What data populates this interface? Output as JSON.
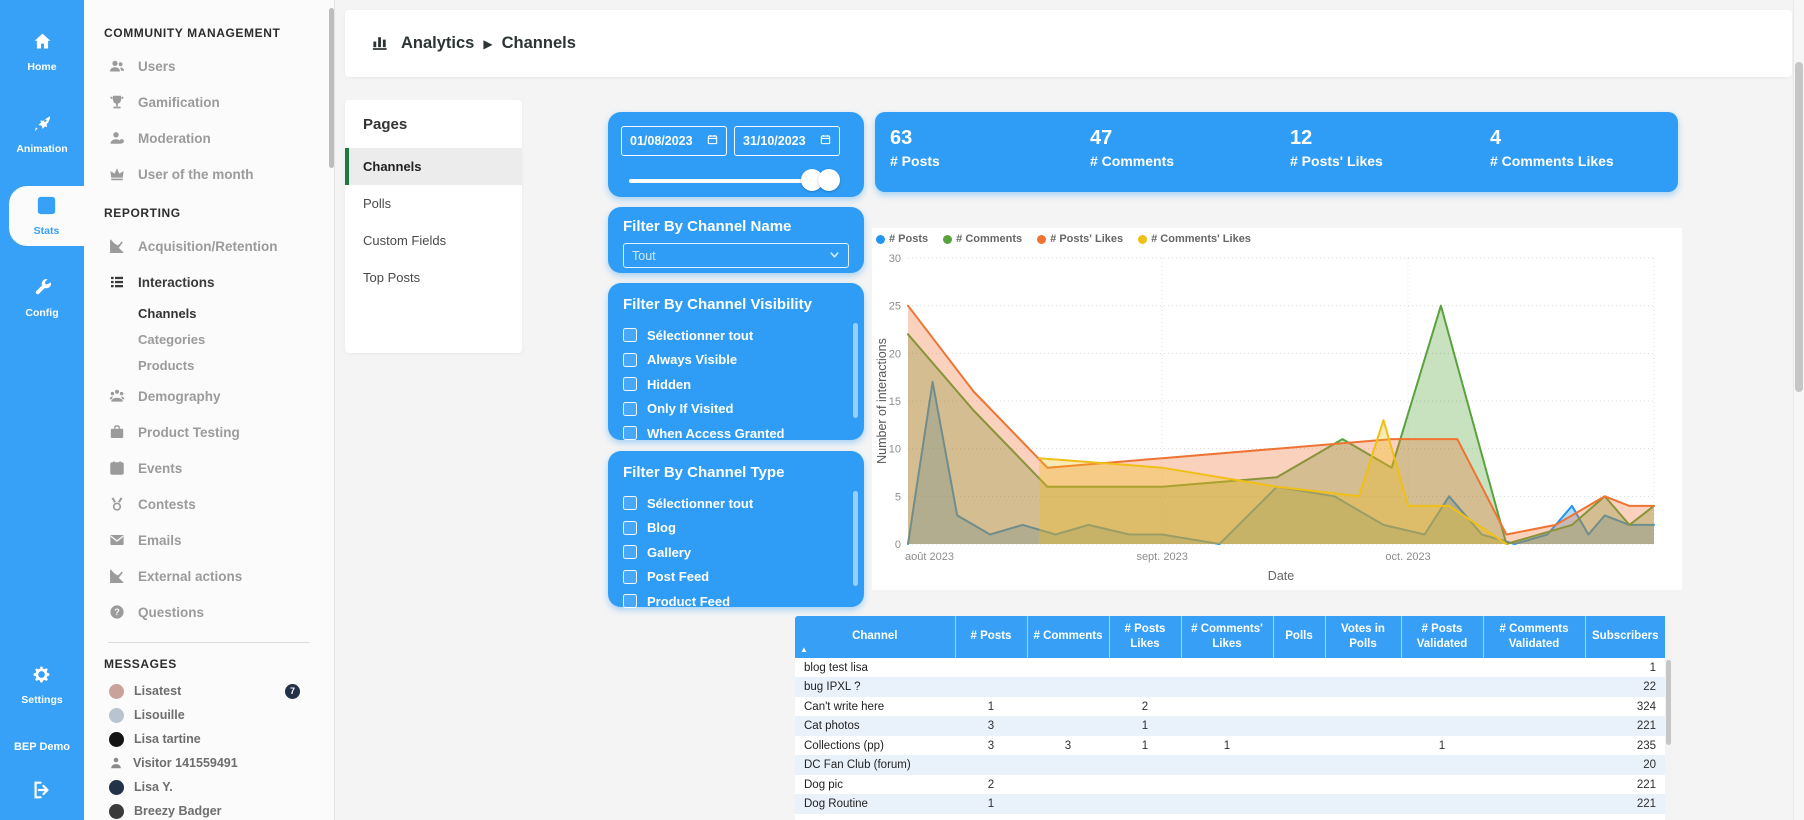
{
  "rail": {
    "items": [
      {
        "id": "home",
        "label": "Home",
        "active": false
      },
      {
        "id": "animation",
        "label": "Animation",
        "active": false
      },
      {
        "id": "stats",
        "label": "Stats",
        "active": true
      },
      {
        "id": "config",
        "label": "Config",
        "active": false
      }
    ],
    "bottom": {
      "settings_label": "Settings",
      "brand": "BEP Demo"
    }
  },
  "sidebar": {
    "sections": [
      {
        "title": "COMMUNITY MANAGEMENT",
        "items": [
          {
            "icon": "users",
            "label": "Users"
          },
          {
            "icon": "trophy",
            "label": "Gamification"
          },
          {
            "icon": "moderation",
            "label": "Moderation"
          },
          {
            "icon": "crown",
            "label": "User of the month"
          }
        ]
      },
      {
        "title": "REPORTING",
        "items": [
          {
            "icon": "chart",
            "label": "Acquisition/Retention"
          },
          {
            "icon": "list",
            "label": "Interactions",
            "bold": true,
            "children": [
              {
                "label": "Channels",
                "bold": true
              },
              {
                "label": "Categories"
              },
              {
                "label": "Products"
              }
            ]
          },
          {
            "icon": "demography",
            "label": "Demography"
          },
          {
            "icon": "product",
            "label": "Product Testing"
          },
          {
            "icon": "calendar",
            "label": "Events"
          },
          {
            "icon": "medal",
            "label": "Contests"
          },
          {
            "icon": "mail",
            "label": "Emails"
          },
          {
            "icon": "chart",
            "label": "External actions"
          },
          {
            "icon": "question",
            "label": "Questions"
          }
        ]
      },
      {
        "title": "MESSAGES",
        "divider_before": true,
        "items": [
          {
            "avatar": "#c9a29b",
            "label": "Lisatest",
            "badge": "7"
          },
          {
            "avatar": "#b8c4cf",
            "label": "Lisouille"
          },
          {
            "avatar": "#141414",
            "label": "Lisa tartine"
          },
          {
            "icon": "person",
            "label": "Visitor 141559491"
          },
          {
            "avatar": "#233247",
            "label": "Lisa Y."
          },
          {
            "avatar": "#3a3a3a",
            "label": "Breezy Badger"
          }
        ]
      }
    ]
  },
  "breadcrumb": {
    "section": "Analytics",
    "page": "Channels"
  },
  "pages_panel": {
    "title": "Pages",
    "items": [
      {
        "label": "Channels",
        "active": true
      },
      {
        "label": "Polls",
        "active": false
      },
      {
        "label": "Custom Fields",
        "active": false
      },
      {
        "label": "Top Posts",
        "active": false
      }
    ]
  },
  "filters": {
    "date_from": "01/08/2023",
    "date_to": "31/10/2023",
    "channel_name": {
      "title": "Filter By Channel Name",
      "placeholder": "Tout"
    },
    "visibility": {
      "title": "Filter By Channel Visibility",
      "options": [
        "Sélectionner tout",
        "Always Visible",
        "Hidden",
        "Only If Visited",
        "When Access Granted"
      ]
    },
    "type": {
      "title": "Filter By Channel Type",
      "options": [
        "Sélectionner tout",
        "Blog",
        "Gallery",
        "Post Feed",
        "Product Feed"
      ]
    }
  },
  "stats": [
    {
      "value": "63",
      "label": "# Posts"
    },
    {
      "value": "47",
      "label": "# Comments"
    },
    {
      "value": "12",
      "label": "# Posts' Likes"
    },
    {
      "value": "4",
      "label": "# Comments Likes"
    }
  ],
  "chart_data": {
    "type": "area",
    "title": "",
    "xlabel": "Date",
    "ylabel": "Number of interactions",
    "ylim": [
      0,
      30
    ],
    "yticks": [
      0,
      5,
      10,
      15,
      20,
      25,
      30
    ],
    "x_domain_days": [
      0,
      91
    ],
    "xticks": [
      {
        "day": 0,
        "label": "août 2023"
      },
      {
        "day": 31,
        "label": "sept. 2023"
      },
      {
        "day": 61,
        "label": "oct. 2023"
      }
    ],
    "legend_position": "top",
    "grid": true,
    "series": [
      {
        "name": "# Posts",
        "color": "#2196f3",
        "points": [
          [
            0,
            0
          ],
          [
            3,
            17
          ],
          [
            6,
            3
          ],
          [
            10,
            1
          ],
          [
            14,
            2
          ],
          [
            18,
            1
          ],
          [
            22,
            2
          ],
          [
            27,
            1
          ],
          [
            31,
            1
          ],
          [
            38,
            0
          ],
          [
            45,
            6
          ],
          [
            52,
            5
          ],
          [
            58,
            2
          ],
          [
            63,
            1
          ],
          [
            66,
            5
          ],
          [
            70,
            1
          ],
          [
            74,
            0
          ],
          [
            78,
            1
          ],
          [
            81,
            4
          ],
          [
            83,
            1
          ],
          [
            85,
            3
          ],
          [
            88,
            2
          ],
          [
            91,
            2
          ]
        ]
      },
      {
        "name": "# Comments",
        "color": "#59a33e",
        "points": [
          [
            0,
            22
          ],
          [
            8,
            14
          ],
          [
            17,
            6
          ],
          [
            31,
            6
          ],
          [
            45,
            7
          ],
          [
            53,
            11
          ],
          [
            59,
            8
          ],
          [
            65,
            25
          ],
          [
            73,
            0
          ],
          [
            81,
            2
          ],
          [
            85,
            5
          ],
          [
            88,
            2
          ],
          [
            91,
            4
          ]
        ]
      },
      {
        "name": "# Posts' Likes",
        "color": "#ee7434",
        "points": [
          [
            0,
            25
          ],
          [
            8,
            16
          ],
          [
            17,
            8
          ],
          [
            31,
            9
          ],
          [
            45,
            10
          ],
          [
            59,
            11
          ],
          [
            67,
            11
          ],
          [
            73,
            1
          ],
          [
            79,
            2
          ],
          [
            85,
            5
          ],
          [
            88,
            4
          ],
          [
            91,
            4
          ]
        ]
      },
      {
        "name": "# Comments' Likes",
        "color": "#f0bf18",
        "points": [
          [
            16,
            9
          ],
          [
            31,
            8
          ],
          [
            45,
            6
          ],
          [
            55,
            5
          ],
          [
            58,
            13
          ],
          [
            61,
            4
          ],
          [
            66,
            4
          ],
          [
            73,
            0
          ]
        ]
      }
    ]
  },
  "table": {
    "headers": [
      "Channel",
      "# Posts",
      "# Comments",
      "# Posts Likes",
      "# Comments' Likes",
      "Polls",
      "Votes in Polls",
      "# Posts Validated",
      "# Comments Validated",
      "Subscribers"
    ],
    "sort_indicator": "▲",
    "rows": [
      [
        "blog test lisa",
        "",
        "",
        "",
        "",
        "",
        "",
        "",
        "",
        "1"
      ],
      [
        "bug IPXL ?",
        "",
        "",
        "",
        "",
        "",
        "",
        "",
        "",
        "22"
      ],
      [
        "Can't write here",
        "1",
        "",
        "2",
        "",
        "",
        "",
        "",
        "",
        "324"
      ],
      [
        "Cat photos",
        "3",
        "",
        "1",
        "",
        "",
        "",
        "",
        "",
        "221"
      ],
      [
        "Collections (pp)",
        "3",
        "3",
        "1",
        "1",
        "",
        "",
        "1",
        "",
        "235"
      ],
      [
        "DC Fan Club (forum)",
        "",
        "",
        "",
        "",
        "",
        "",
        "",
        "",
        "20"
      ],
      [
        "Dog pic",
        "2",
        "",
        "",
        "",
        "",
        "",
        "",
        "",
        "221"
      ],
      [
        "Dog Routine",
        "1",
        "",
        "",
        "",
        "",
        "",
        "",
        "",
        "221"
      ]
    ]
  },
  "colors": {
    "accent": "#2f9df5",
    "active_page_green": "#1f7a3e",
    "stripe": "#e9f1fb"
  }
}
